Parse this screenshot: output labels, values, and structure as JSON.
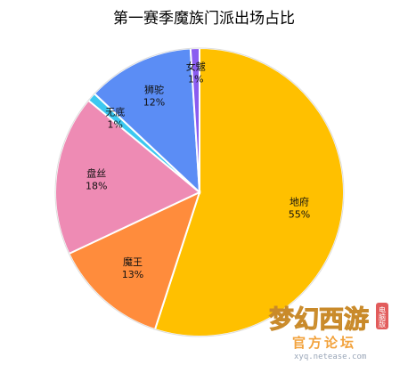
{
  "chart_data": {
    "type": "pie",
    "title": "第一赛季魔族门派出场占比",
    "slices": [
      {
        "name": "地府",
        "label": "55%",
        "value": 55,
        "color": "#FFC000"
      },
      {
        "name": "魔王",
        "label": "13%",
        "value": 13,
        "color": "#FF8C3C"
      },
      {
        "name": "盘丝",
        "label": "18%",
        "value": 18,
        "color": "#EE8BB4"
      },
      {
        "name": "无底",
        "label": "1%",
        "value": 1,
        "color": "#3CC8F0"
      },
      {
        "name": "狮驼",
        "label": "12%",
        "value": 12,
        "color": "#5B8DF5"
      },
      {
        "name": "女魃",
        "label": "1%",
        "value": 1,
        "color": "#8A5CF0"
      }
    ],
    "legend": "none"
  },
  "watermark": {
    "logo_text": "梦幻西游",
    "badge": "电脑版",
    "forum": "官方论坛",
    "url": "xyq.netease.com"
  }
}
